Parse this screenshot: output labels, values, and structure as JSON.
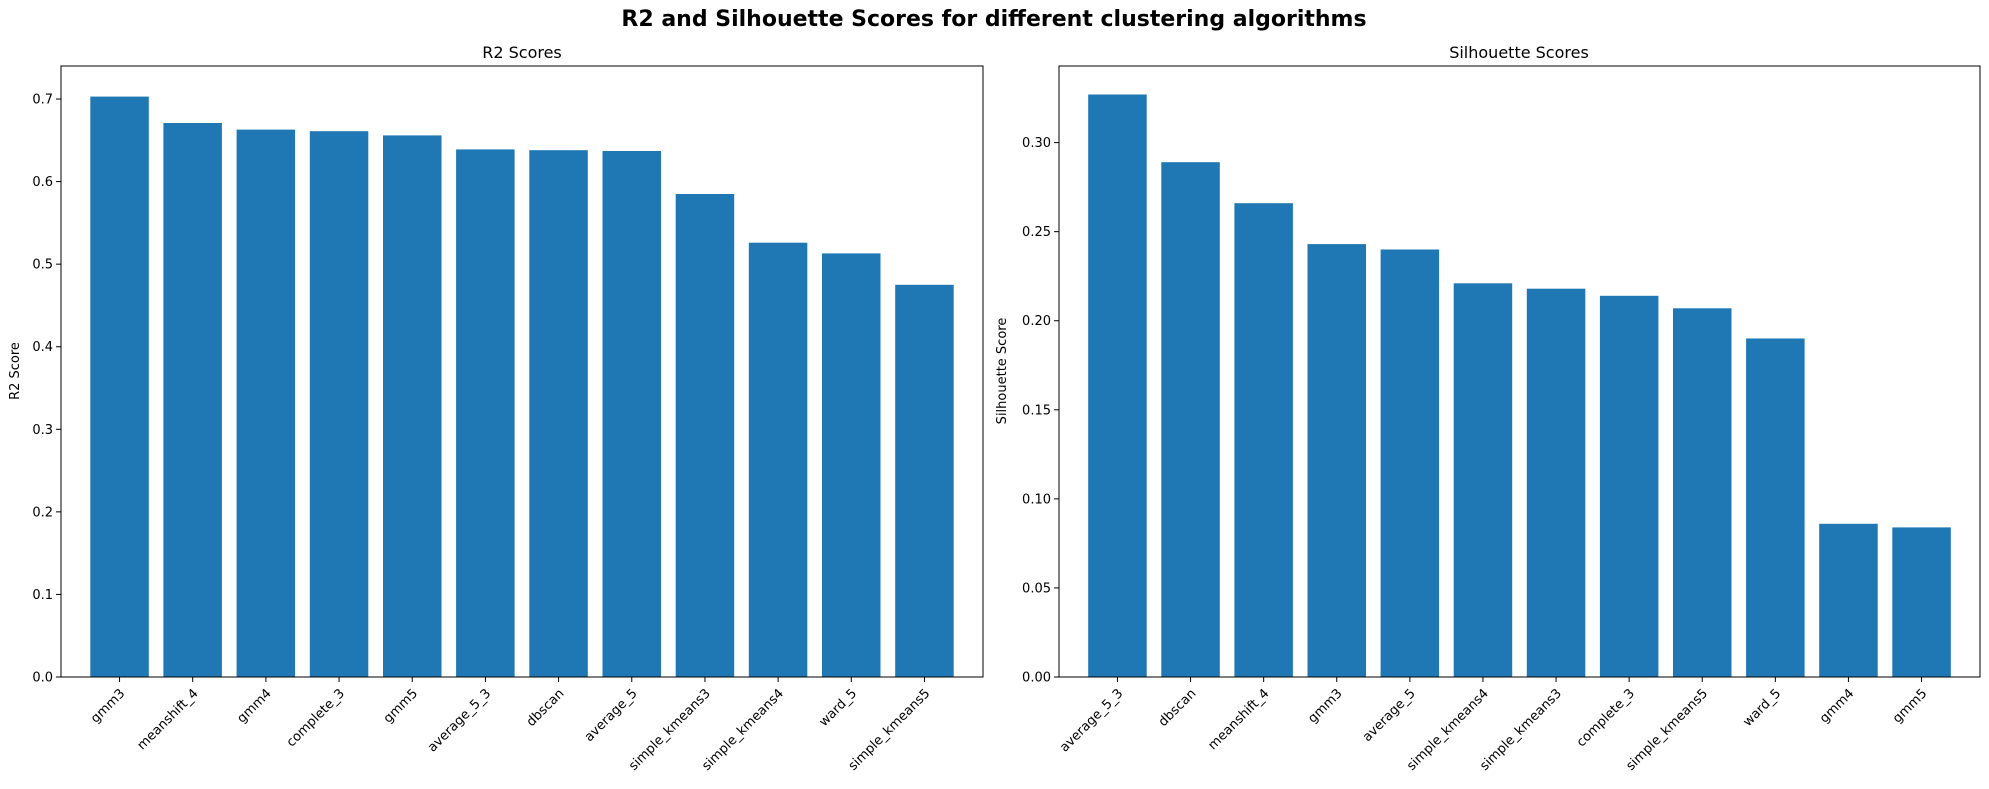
{
  "figure": {
    "suptitle": "R2 and Silhouette Scores for different clustering algorithms",
    "bar_color": "#1f77b4"
  },
  "chart_data": [
    {
      "type": "bar",
      "title": "R2 Scores",
      "xlabel": "",
      "ylabel": "R2 Score",
      "ylim": [
        0,
        0.74
      ],
      "yticks": [
        "0.0",
        "0.1",
        "0.2",
        "0.3",
        "0.4",
        "0.5",
        "0.6",
        "0.7"
      ],
      "categories": [
        "gmm3",
        "meanshift_4",
        "gmm4",
        "complete_3",
        "gmm5",
        "average_5_3",
        "dbscan",
        "average_5",
        "simple_kmeans3",
        "simple_kmeans4",
        "ward_5",
        "simple_kmeans5"
      ],
      "values": [
        0.703,
        0.671,
        0.663,
        0.661,
        0.656,
        0.639,
        0.638,
        0.637,
        0.585,
        0.526,
        0.513,
        0.475
      ],
      "grid": false
    },
    {
      "type": "bar",
      "title": "Silhouette Scores",
      "xlabel": "",
      "ylabel": "Silhouette Score",
      "ylim": [
        0,
        0.343
      ],
      "yticks": [
        "0.00",
        "0.05",
        "0.10",
        "0.15",
        "0.20",
        "0.25",
        "0.30"
      ],
      "categories": [
        "average_5_3",
        "dbscan",
        "meanshift_4",
        "gmm3",
        "average_5",
        "simple_kmeans4",
        "simple_kmeans3",
        "complete_3",
        "simple_kmeans5",
        "ward_5",
        "gmm4",
        "gmm5"
      ],
      "values": [
        0.327,
        0.289,
        0.266,
        0.243,
        0.24,
        0.221,
        0.218,
        0.214,
        0.207,
        0.19,
        0.086,
        0.084
      ],
      "grid": false
    }
  ]
}
